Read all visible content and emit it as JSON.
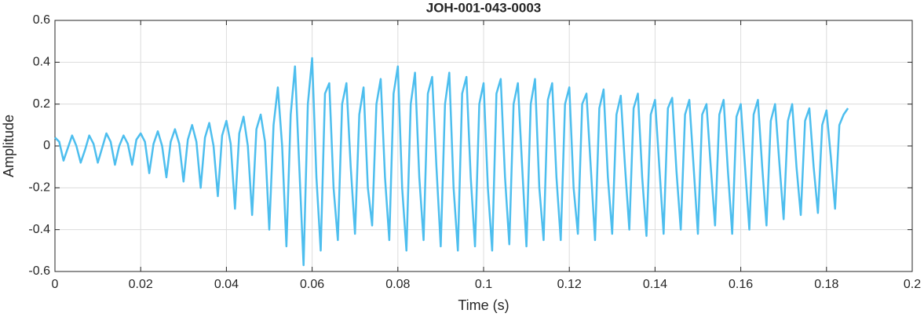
{
  "chart_data": {
    "type": "line",
    "title": "JOH-001-043-0003",
    "xlabel": "Time (s)",
    "ylabel": "Amplitude",
    "x": [
      0,
      0.001,
      0.002,
      0.003,
      0.004,
      0.005,
      0.006,
      0.007,
      0.008,
      0.009,
      0.01,
      0.011,
      0.012,
      0.013,
      0.014,
      0.015,
      0.016,
      0.017,
      0.018,
      0.019,
      0.02,
      0.021,
      0.022,
      0.023,
      0.024,
      0.025,
      0.026,
      0.027,
      0.028,
      0.029,
      0.03,
      0.031,
      0.032,
      0.033,
      0.034,
      0.035,
      0.036,
      0.037,
      0.038,
      0.039,
      0.04,
      0.041,
      0.042,
      0.043,
      0.044,
      0.045,
      0.046,
      0.047,
      0.048,
      0.049,
      0.05,
      0.051,
      0.052,
      0.053,
      0.054,
      0.055,
      0.056,
      0.057,
      0.058,
      0.059,
      0.06,
      0.061,
      0.062,
      0.063,
      0.064,
      0.065,
      0.066,
      0.067,
      0.068,
      0.069,
      0.07,
      0.071,
      0.072,
      0.073,
      0.074,
      0.075,
      0.076,
      0.077,
      0.078,
      0.079,
      0.08,
      0.081,
      0.082,
      0.083,
      0.084,
      0.085,
      0.086,
      0.087,
      0.088,
      0.089,
      0.09,
      0.091,
      0.092,
      0.093,
      0.094,
      0.095,
      0.096,
      0.097,
      0.098,
      0.099,
      0.1,
      0.101,
      0.102,
      0.103,
      0.104,
      0.105,
      0.106,
      0.107,
      0.108,
      0.109,
      0.11,
      0.111,
      0.112,
      0.113,
      0.114,
      0.115,
      0.116,
      0.117,
      0.118,
      0.119,
      0.12,
      0.121,
      0.122,
      0.123,
      0.124,
      0.125,
      0.126,
      0.127,
      0.128,
      0.129,
      0.13,
      0.131,
      0.132,
      0.133,
      0.134,
      0.135,
      0.136,
      0.137,
      0.138,
      0.139,
      0.14,
      0.141,
      0.142,
      0.143,
      0.144,
      0.145,
      0.146,
      0.147,
      0.148,
      0.149,
      0.15,
      0.151,
      0.152,
      0.153,
      0.154,
      0.155,
      0.156,
      0.157,
      0.158,
      0.159,
      0.16,
      0.161,
      0.162,
      0.163,
      0.164,
      0.165,
      0.166,
      0.167,
      0.168,
      0.169,
      0.17,
      0.171,
      0.172,
      0.173,
      0.174,
      0.175,
      0.176,
      0.177,
      0.178,
      0.179,
      0.18,
      0.181,
      0.182,
      0.183,
      0.184,
      0.185
    ],
    "series": [
      {
        "name": "Amplitude",
        "color": "#4dbeee",
        "values": [
          0.04,
          0.02,
          -0.07,
          -0.01,
          0.05,
          0.0,
          -0.08,
          -0.02,
          0.05,
          0.01,
          -0.08,
          -0.01,
          0.06,
          0.02,
          -0.09,
          0.0,
          0.05,
          0.01,
          -0.09,
          0.03,
          0.06,
          0.02,
          -0.13,
          0.01,
          0.07,
          0.0,
          -0.15,
          0.02,
          0.08,
          0.01,
          -0.17,
          0.03,
          0.1,
          0.02,
          -0.2,
          0.04,
          0.11,
          0.0,
          -0.24,
          0.05,
          0.12,
          0.01,
          -0.3,
          0.06,
          0.14,
          0.0,
          -0.33,
          0.08,
          0.15,
          0.02,
          -0.4,
          0.1,
          0.28,
          0.0,
          -0.48,
          0.15,
          0.38,
          -0.1,
          -0.57,
          0.2,
          0.42,
          -0.15,
          -0.5,
          0.25,
          0.3,
          -0.2,
          -0.45,
          0.2,
          0.3,
          -0.1,
          -0.42,
          0.15,
          0.28,
          -0.2,
          -0.38,
          0.2,
          0.32,
          -0.15,
          -0.45,
          0.25,
          0.38,
          -0.2,
          -0.5,
          0.2,
          0.35,
          -0.15,
          -0.45,
          0.25,
          0.33,
          -0.1,
          -0.48,
          0.2,
          0.35,
          -0.2,
          -0.5,
          0.25,
          0.33,
          -0.15,
          -0.48,
          0.2,
          0.3,
          -0.2,
          -0.5,
          0.25,
          0.32,
          -0.15,
          -0.47,
          0.2,
          0.3,
          -0.1,
          -0.48,
          0.2,
          0.32,
          -0.2,
          -0.45,
          0.22,
          0.3,
          -0.15,
          -0.45,
          0.2,
          0.28,
          -0.2,
          -0.42,
          0.2,
          0.25,
          -0.1,
          -0.45,
          0.18,
          0.27,
          -0.15,
          -0.42,
          0.15,
          0.24,
          -0.1,
          -0.4,
          0.18,
          0.25,
          -0.15,
          -0.43,
          0.15,
          0.22,
          -0.1,
          -0.42,
          0.18,
          0.23,
          -0.12,
          -0.4,
          0.15,
          0.22,
          -0.1,
          -0.42,
          0.15,
          0.2,
          -0.1,
          -0.38,
          0.15,
          0.22,
          -0.12,
          -0.42,
          0.14,
          0.2,
          -0.1,
          -0.4,
          0.15,
          0.22,
          -0.1,
          -0.38,
          0.12,
          0.2,
          -0.08,
          -0.35,
          0.12,
          0.2,
          -0.1,
          -0.33,
          0.12,
          0.18,
          -0.1,
          -0.32,
          0.1,
          0.17,
          -0.05,
          -0.3,
          0.1,
          0.15,
          0.18
        ]
      }
    ],
    "xlim": [
      0,
      0.2
    ],
    "xticks": [
      0,
      0.02,
      0.04,
      0.06,
      0.08,
      0.1,
      0.12,
      0.14,
      0.16,
      0.18,
      0.2
    ],
    "ylim": [
      -0.6,
      0.6
    ],
    "yticks": [
      -0.6,
      -0.4,
      -0.2,
      0,
      0.2,
      0.4,
      0.6
    ],
    "grid": true
  }
}
